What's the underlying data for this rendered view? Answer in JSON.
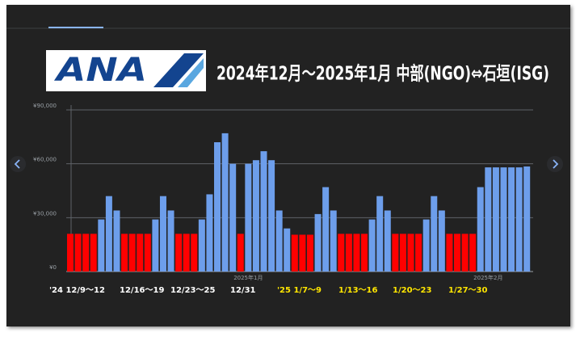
{
  "logo": "ANA",
  "chart_data": {
    "type": "bar",
    "title": "2024年12月〜2025年1月 中部(NGO)⇔石垣(ISG)",
    "categories": [
      null,
      null,
      null,
      null,
      null,
      null,
      null,
      null,
      null,
      null,
      null,
      null,
      null,
      null,
      null,
      null,
      null,
      null,
      null,
      null,
      null,
      null,
      null,
      "2025年1月",
      null,
      null,
      null,
      null,
      null,
      null,
      null,
      null,
      null,
      null,
      null,
      null,
      null,
      null,
      null,
      null,
      null,
      null,
      null,
      null,
      null,
      null,
      null,
      null,
      null,
      null,
      null,
      null,
      null,
      null,
      "2025年2月",
      null,
      null,
      null,
      null,
      null
    ],
    "values": [
      21000,
      21000,
      21000,
      21000,
      29000,
      42000,
      34000,
      21000,
      21000,
      21000,
      21000,
      29000,
      42000,
      34000,
      21000,
      21000,
      21000,
      29000,
      43000,
      72000,
      77000,
      60000,
      21000,
      60000,
      62000,
      67000,
      62000,
      34000,
      24000,
      20500,
      20500,
      20500,
      32000,
      47000,
      34000,
      21000,
      21000,
      21000,
      21000,
      29000,
      42000,
      34000,
      21000,
      21000,
      21000,
      21000,
      29000,
      42000,
      34000,
      21000,
      21000,
      21000,
      21000,
      47000,
      58000,
      58000,
      58000,
      58000,
      58000,
      58500
    ],
    "colors": [
      "#ff0000",
      "#ff0000",
      "#ff0000",
      "#ff0000",
      "#6d9eeb",
      "#6d9eeb",
      "#6d9eeb",
      "#ff0000",
      "#ff0000",
      "#ff0000",
      "#ff0000",
      "#6d9eeb",
      "#6d9eeb",
      "#6d9eeb",
      "#ff0000",
      "#ff0000",
      "#ff0000",
      "#6d9eeb",
      "#6d9eeb",
      "#6d9eeb",
      "#6d9eeb",
      "#6d9eeb",
      "#ff0000",
      "#6d9eeb",
      "#6d9eeb",
      "#6d9eeb",
      "#6d9eeb",
      "#6d9eeb",
      "#6d9eeb",
      "#ff0000",
      "#ff0000",
      "#ff0000",
      "#6d9eeb",
      "#6d9eeb",
      "#6d9eeb",
      "#ff0000",
      "#ff0000",
      "#ff0000",
      "#ff0000",
      "#6d9eeb",
      "#6d9eeb",
      "#6d9eeb",
      "#ff0000",
      "#ff0000",
      "#ff0000",
      "#ff0000",
      "#6d9eeb",
      "#6d9eeb",
      "#6d9eeb",
      "#ff0000",
      "#ff0000",
      "#ff0000",
      "#ff0000",
      "#6d9eeb",
      "#6d9eeb",
      "#6d9eeb",
      "#6d9eeb",
      "#6d9eeb",
      "#6d9eeb",
      "#6d9eeb"
    ],
    "ylim": [
      0,
      90000
    ],
    "yticks": [
      {
        "value": 0,
        "label": "¥0"
      },
      {
        "value": 30000,
        "label": "¥30,000"
      },
      {
        "value": 60000,
        "label": "¥60,000"
      },
      {
        "value": 90000,
        "label": "¥90,000"
      }
    ],
    "grid": true,
    "annotations": [
      {
        "text": "'24 12/9〜12",
        "color": "#ffffff"
      },
      {
        "text": "12/16〜19",
        "color": "#ffffff"
      },
      {
        "text": "12/23〜25",
        "color": "#ffffff"
      },
      {
        "text": "12/31",
        "color": "#ffffff"
      },
      {
        "text": "'25 1/7〜9",
        "color": "#ffe600"
      },
      {
        "text": "1/13〜16",
        "color": "#ffe600"
      },
      {
        "text": "1/20〜23",
        "color": "#ffe600"
      },
      {
        "text": "1/27〜30",
        "color": "#ffe600"
      }
    ]
  }
}
